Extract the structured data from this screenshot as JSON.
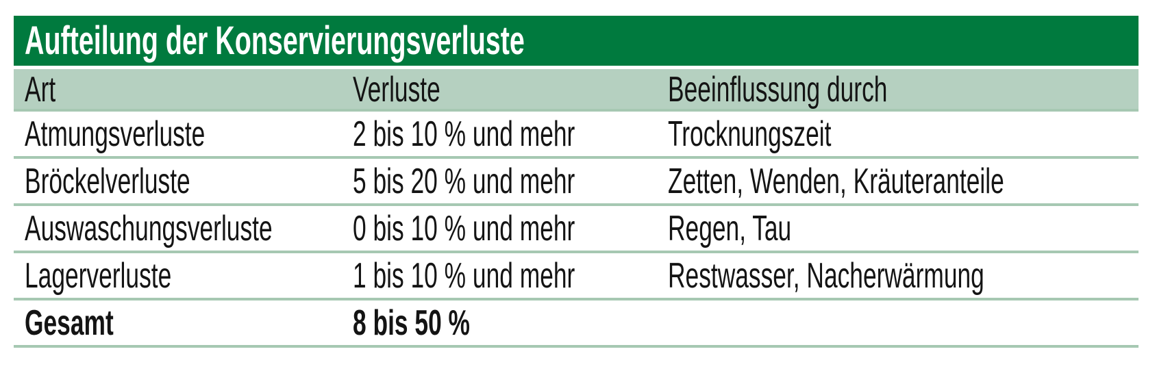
{
  "table": {
    "title": "Aufteilung der Konservierungsverluste",
    "columns": [
      "Art",
      "Verluste",
      "Beeinflussung durch"
    ],
    "rows": [
      {
        "art": "Atmungsverluste",
        "verluste": "2 bis 10 % und mehr",
        "beeinflussung": "Trocknungszeit"
      },
      {
        "art": "Bröckelverluste",
        "verluste": "5 bis 20 % und mehr",
        "beeinflussung": "Zetten, Wenden, Kräuteranteile"
      },
      {
        "art": "Auswaschungsverluste",
        "verluste": "0 bis 10 % und mehr",
        "beeinflussung": "Regen, Tau"
      },
      {
        "art": "Lagerverluste",
        "verluste": "1 bis 10 % und mehr",
        "beeinflussung": "Restwasser, Nacherwärmung"
      }
    ],
    "total_row": {
      "art": "Gesamt",
      "verluste": "8 bis 50 %",
      "beeinflussung": ""
    }
  },
  "colors": {
    "header_green": "#007a3e",
    "row_green": "#b5d0c0",
    "rule_green": "#a6c8b2",
    "text": "#141414",
    "title_text": "#ffffff",
    "background": "#ffffff"
  }
}
